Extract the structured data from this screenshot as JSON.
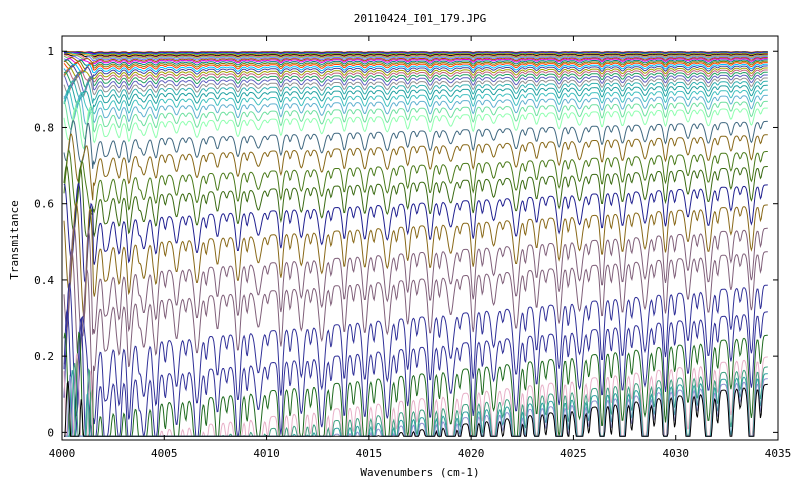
{
  "chart_data": {
    "type": "line",
    "title": "20110424_I01_179.JPG",
    "xlabel": "Wavenumbers (cm-1)",
    "ylabel": "Transmitance",
    "xlim": [
      4000,
      4035
    ],
    "ylim": [
      -0.02,
      1.04
    ],
    "x_ticks": [
      4000,
      4005,
      4010,
      4015,
      4020,
      4025,
      4030,
      4035
    ],
    "y_ticks": [
      0,
      0.2,
      0.4,
      0.6,
      0.8,
      1
    ],
    "y_tick_labels": [
      "0",
      "0.2",
      "0.4",
      "0.6",
      "0.8",
      "1"
    ],
    "grid": false,
    "legend": "none",
    "absorption_line_centers": [
      4001.1,
      4001.6,
      4002.2,
      4002.8,
      4003.3,
      4004.0,
      4004.6,
      4005.6,
      4006.6,
      4007.6,
      4008.6,
      4009.6,
      4010.7,
      4011.7,
      4012.7,
      4013.8,
      4014.8,
      4015.9,
      4016.9,
      4018.0,
      4019.0,
      4020.1,
      4021.1,
      4022.2,
      4023.2,
      4024.3,
      4025.3,
      4026.4,
      4027.4,
      4028.5,
      4029.5,
      4030.6,
      4031.6,
      4032.7,
      4033.7
    ],
    "series": [
      {
        "color": "#e00000",
        "values": [
          0.999,
          0.999
        ]
      },
      {
        "color": "#00a000",
        "values": [
          0.998,
          0.998
        ]
      },
      {
        "color": "#0000e0",
        "values": [
          0.997,
          0.997
        ]
      },
      {
        "color": "#c000c0",
        "values": [
          0.996,
          0.996
        ]
      },
      {
        "color": "#00a0a0",
        "values": [
          0.995,
          0.995
        ]
      },
      {
        "color": "#e0a000",
        "values": [
          0.993,
          0.993
        ]
      },
      {
        "color": "#000000",
        "values": [
          0.991,
          0.991
        ]
      },
      {
        "color": "#ff7070",
        "values": [
          0.989,
          0.989
        ]
      },
      {
        "color": "#70c070",
        "values": [
          0.987,
          0.987
        ]
      },
      {
        "color": "#7070ff",
        "values": [
          0.984,
          0.984
        ]
      },
      {
        "color": "#a05000",
        "values": [
          0.981,
          0.981
        ]
      },
      {
        "color": "#e000e0",
        "values": [
          0.978,
          0.978
        ]
      },
      {
        "color": "#008080",
        "values": [
          0.974,
          0.974
        ]
      },
      {
        "color": "#808000",
        "values": [
          0.97,
          0.97
        ]
      },
      {
        "color": "#ff4000",
        "values": [
          0.966,
          0.966
        ]
      },
      {
        "color": "#00c0ff",
        "values": [
          0.961,
          0.961
        ]
      },
      {
        "color": "#4040a0",
        "values": [
          0.956,
          0.956
        ]
      },
      {
        "color": "#a0a000",
        "values": [
          0.95,
          0.95
        ]
      },
      {
        "color": "#c06080",
        "values": [
          0.944,
          0.944
        ]
      },
      {
        "color": "#20a060",
        "values": [
          0.937,
          0.937
        ]
      },
      {
        "color": "#6060c0",
        "values": [
          0.929,
          0.929
        ]
      },
      {
        "color": "#909090",
        "values": [
          0.92,
          0.92
        ]
      },
      {
        "color": "#30b0b0",
        "values": [
          0.91,
          0.91
        ]
      },
      {
        "color": "#20a0a0",
        "values": [
          0.898,
          0.898
        ]
      },
      {
        "color": "#40c0c0",
        "values": [
          0.884,
          0.884
        ]
      },
      {
        "color": "#60b0d0",
        "values": [
          0.868,
          0.868
        ]
      },
      {
        "color": "#6fe0a0",
        "values": [
          0.85,
          0.85
        ]
      },
      {
        "color": "#90ffb0",
        "values": [
          0.83,
          0.83
        ]
      },
      {
        "color": "#406880",
        "values": [
          0.79,
          0.79
        ]
      },
      {
        "color": "#886818",
        "values": [
          0.75,
          0.75
        ]
      },
      {
        "color": "#4a7a1a",
        "values": [
          0.7,
          0.7
        ]
      },
      {
        "color": "#3a6a12",
        "values": [
          0.655,
          0.655
        ]
      },
      {
        "color": "#202090",
        "values": [
          0.6,
          0.6
        ]
      },
      {
        "color": "#886818",
        "values": [
          0.54,
          0.54
        ]
      },
      {
        "color": "#80607a",
        "values": [
          0.47,
          0.47
        ]
      },
      {
        "color": "#80607a",
        "values": [
          0.4,
          0.4
        ]
      },
      {
        "color": "#303098",
        "values": [
          0.3,
          0.3
        ]
      },
      {
        "color": "#303098",
        "values": [
          0.22,
          0.22
        ]
      },
      {
        "color": "#1e6a1e",
        "values": [
          0.15,
          0.15
        ]
      },
      {
        "color": "#e8b0c8",
        "values": [
          0.085,
          0.085
        ]
      },
      {
        "color": "#40a080",
        "values": [
          0.055,
          0.055
        ]
      },
      {
        "color": "#30a0a0",
        "values": [
          0.035,
          0.035
        ]
      },
      {
        "color": "#9090d0",
        "values": [
          0.02,
          0.02
        ]
      },
      {
        "color": "#000000",
        "values": [
          0.003,
          0.003
        ]
      }
    ]
  }
}
